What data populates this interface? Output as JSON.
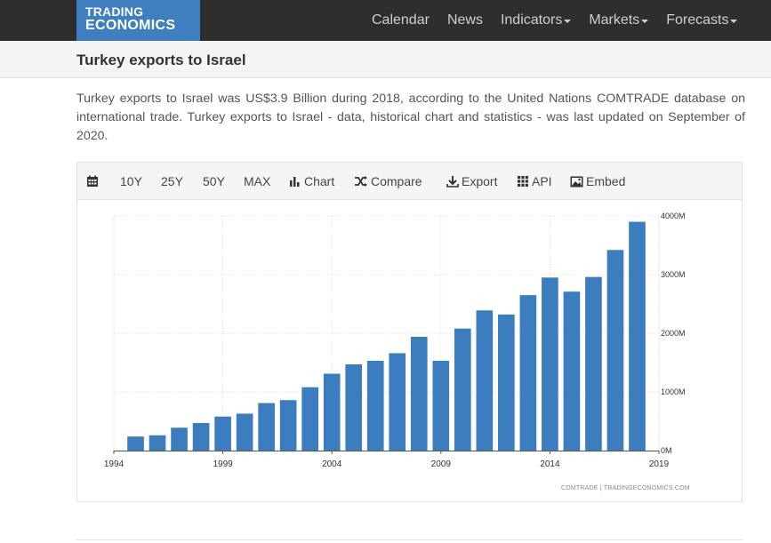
{
  "brand": {
    "line1": "TRADING",
    "line2": "ECONOMICS"
  },
  "nav": {
    "items": [
      {
        "label": "Calendar",
        "dropdown": false
      },
      {
        "label": "News",
        "dropdown": false
      },
      {
        "label": "Indicators",
        "dropdown": true
      },
      {
        "label": "Markets",
        "dropdown": true
      },
      {
        "label": "Forecasts",
        "dropdown": true
      }
    ]
  },
  "page": {
    "title": "Turkey exports to Israel",
    "description": "Turkey exports to Israel was US$3.9 Billion during 2018, according to the United Nations COMTRADE database on international trade. Turkey exports to Israel - data, historical chart and statistics - was last updated on September of 2020."
  },
  "toolbar": {
    "ranges": [
      "10Y",
      "25Y",
      "50Y",
      "MAX"
    ],
    "chart_label": "Chart",
    "compare_label": "Compare",
    "export_label": "Export",
    "api_label": "API",
    "embed_label": "Embed"
  },
  "source": "COMTRADE | TRADINGECONOMICS.COM",
  "colors": {
    "bar": "#3b7dbf",
    "navbar": "#2e2e2e",
    "brand": "#3f7fbf"
  },
  "chart_data": {
    "type": "bar",
    "title": "",
    "xlabel": "",
    "ylabel": "",
    "x": [
      1995,
      1996,
      1997,
      1998,
      1999,
      2000,
      2001,
      2002,
      2003,
      2004,
      2005,
      2006,
      2007,
      2008,
      2009,
      2010,
      2011,
      2012,
      2013,
      2014,
      2015,
      2016,
      2017,
      2018
    ],
    "values": [
      240,
      260,
      390,
      470,
      580,
      630,
      810,
      860,
      1080,
      1310,
      1470,
      1530,
      1660,
      1940,
      1530,
      2080,
      2390,
      2320,
      2650,
      2950,
      2710,
      2960,
      3420,
      3900
    ],
    "unit": "USD Million",
    "xlim": [
      1994,
      2019
    ],
    "ylim": [
      0,
      4000
    ],
    "xticks": [
      1994,
      1999,
      2004,
      2009,
      2014,
      2019
    ],
    "yticks": [
      {
        "value": 0,
        "label": "0M"
      },
      {
        "value": 1000,
        "label": "1000M"
      },
      {
        "value": 2000,
        "label": "2000M"
      },
      {
        "value": 3000,
        "label": "3000M"
      },
      {
        "value": 4000,
        "label": "4000M"
      }
    ],
    "grid": true,
    "y_axis_side": "right"
  }
}
